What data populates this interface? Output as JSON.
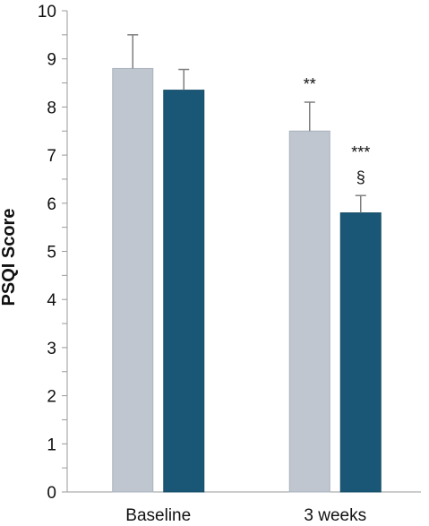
{
  "chart_data": {
    "type": "bar",
    "categories": [
      "Baseline",
      "3 weeks"
    ],
    "series": [
      {
        "color": "#bfc6d0",
        "edge": "#a9b1bc",
        "values": [
          8.8,
          7.5
        ],
        "errors": [
          0.7,
          0.6
        ]
      },
      {
        "color": "#1a5777",
        "edge": "#164b66",
        "values": [
          8.35,
          5.8
        ],
        "errors": [
          0.43,
          0.36
        ]
      }
    ],
    "annotations": [
      {
        "category": 1,
        "series": 0,
        "lines": [
          "**"
        ]
      },
      {
        "category": 1,
        "series": 1,
        "lines": [
          "***",
          "§"
        ]
      }
    ],
    "ylabel": "PSQI Score",
    "ylim": [
      0,
      10
    ],
    "yticks": [
      0,
      1,
      2,
      3,
      4,
      5,
      6,
      7,
      8,
      9,
      10
    ],
    "ytick_labels": [
      "0",
      "1",
      "2",
      "3",
      "4",
      "5",
      "6",
      "7",
      "8",
      "9",
      "10"
    ],
    "minor_ticks_per_major": 2,
    "grid": false
  }
}
